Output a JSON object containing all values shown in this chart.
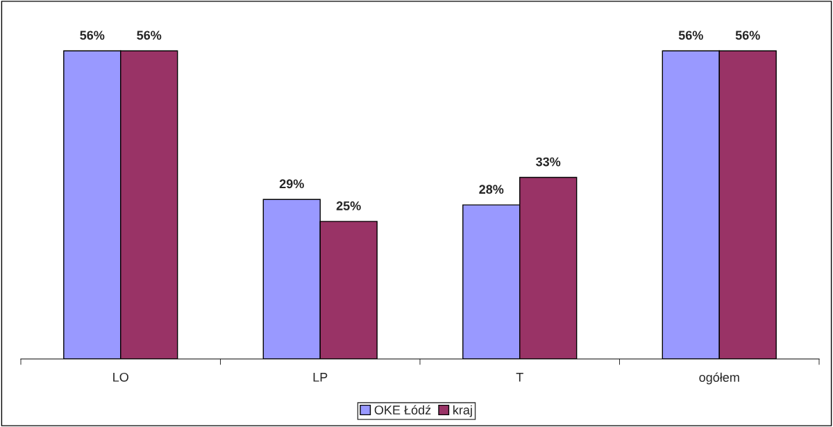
{
  "chart_data": {
    "type": "bar",
    "categories": [
      "LO",
      "LP",
      "T",
      "ogółem"
    ],
    "series": [
      {
        "name": "OKE Łódź",
        "color": "#9999ff",
        "values": [
          56,
          29,
          28,
          56
        ],
        "value_labels": [
          "56%",
          "29%",
          "28%",
          "56%"
        ]
      },
      {
        "name": "kraj",
        "color": "#993366",
        "values": [
          56,
          25,
          33,
          56
        ],
        "value_labels": [
          "56%",
          "25%",
          "33%",
          "56%"
        ]
      }
    ],
    "legend": "bottom",
    "grid": false
  }
}
